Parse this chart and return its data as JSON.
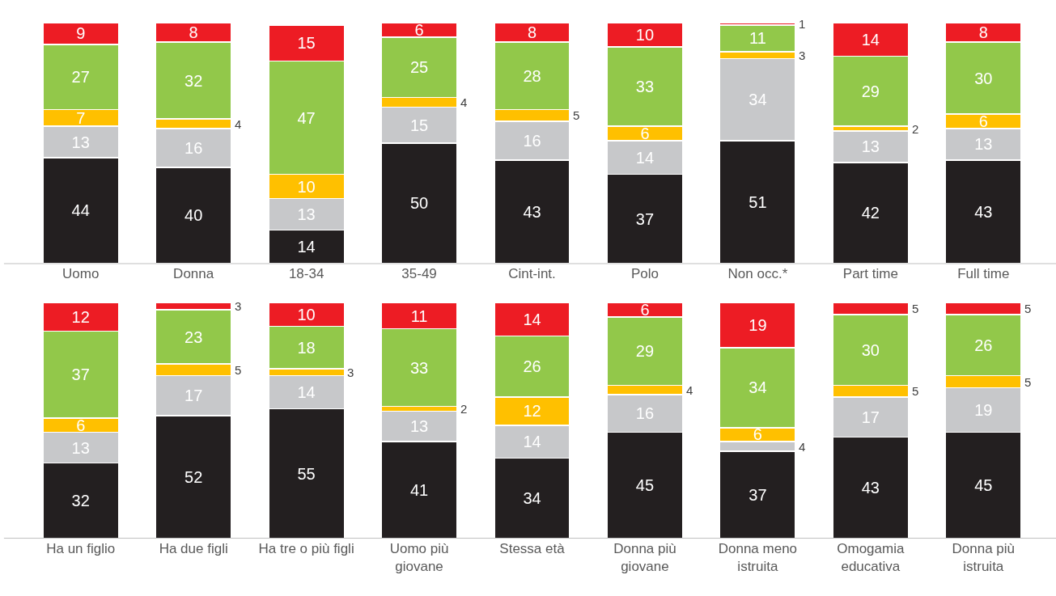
{
  "chart_data": [
    {
      "type": "bar",
      "stacked": true,
      "data_labels": true,
      "tick_labels": "x",
      "categories": [
        "Uomo",
        "Donna",
        "18-34",
        "35-49",
        "Cint-int.",
        "Polo",
        "Non occ.*",
        "Part time",
        "Full time"
      ],
      "series": [
        {
          "color": "#231f20",
          "values": [
            44,
            40,
            14,
            50,
            43,
            37,
            51,
            42,
            43
          ]
        },
        {
          "color": "#c7c8ca",
          "values": [
            13,
            16,
            13,
            15,
            16,
            14,
            34,
            13,
            13
          ]
        },
        {
          "color": "#ffc000",
          "values": [
            7,
            4,
            10,
            4,
            5,
            6,
            3,
            2,
            6
          ]
        },
        {
          "color": "#92c84a",
          "values": [
            27,
            32,
            47,
            25,
            28,
            33,
            11,
            29,
            30
          ]
        },
        {
          "color": "#ed1c24",
          "values": [
            9,
            8,
            15,
            6,
            8,
            10,
            1,
            14,
            8
          ]
        }
      ]
    },
    {
      "type": "bar",
      "stacked": true,
      "data_labels": true,
      "tick_labels": "x",
      "categories": [
        "Ha un figlio",
        "Ha due figli",
        "Ha tre o più figli",
        "Uomo più\ngiovane",
        "Stessa età",
        "Donna più\ngiovane",
        "Donna meno\nistruita",
        "Omogamia\neducativa",
        "Donna più\nistruita"
      ],
      "series": [
        {
          "color": "#231f20",
          "values": [
            32,
            52,
            55,
            41,
            34,
            45,
            37,
            43,
            45
          ]
        },
        {
          "color": "#c7c8ca",
          "values": [
            13,
            17,
            14,
            13,
            14,
            16,
            4,
            17,
            19
          ]
        },
        {
          "color": "#ffc000",
          "values": [
            6,
            5,
            3,
            2,
            12,
            4,
            6,
            5,
            5
          ]
        },
        {
          "color": "#92c84a",
          "values": [
            37,
            23,
            18,
            33,
            26,
            29,
            34,
            30,
            26
          ]
        },
        {
          "color": "#ed1c24",
          "values": [
            12,
            3,
            10,
            11,
            14,
            6,
            19,
            5,
            5
          ]
        }
      ]
    }
  ]
}
